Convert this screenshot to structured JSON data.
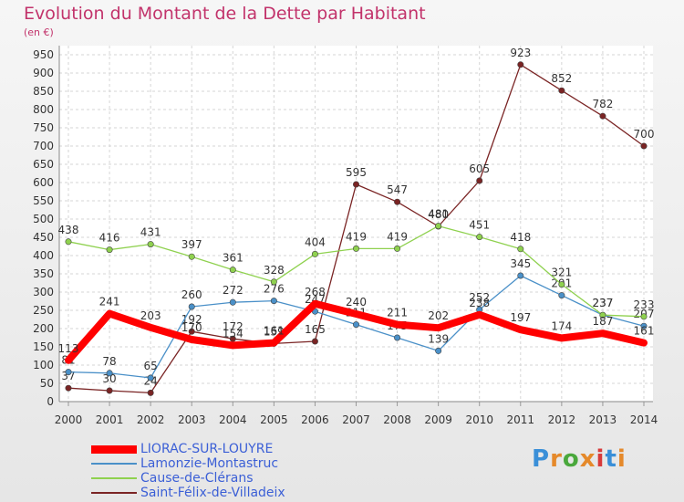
{
  "title": "Evolution du Montant de la Dette par Habitant",
  "unit": "(en €)",
  "brand": "Proxiti",
  "chart_data": {
    "type": "line",
    "x": [
      "2000",
      "2001",
      "2002",
      "2003",
      "2004",
      "2005",
      "2006",
      "2007",
      "2008",
      "2009",
      "2010",
      "2011",
      "2012",
      "2013",
      "2014"
    ],
    "yticks": [
      0,
      50,
      100,
      150,
      200,
      250,
      300,
      350,
      400,
      450,
      500,
      550,
      600,
      650,
      700,
      750,
      800,
      850,
      900,
      950
    ],
    "ylim": [
      0,
      950
    ],
    "grid": true,
    "legend_position": "bottom-left",
    "series": [
      {
        "name": "LIORAC-SUR-LOUYRE",
        "color": "#ff0000",
        "values": [
          113,
          241,
          203,
          170,
          154,
          161,
          268,
          240,
          211,
          202,
          238,
          197,
          174,
          187,
          161
        ]
      },
      {
        "name": "Lamonzie-Montastruc",
        "color": "#4a90c8",
        "values": [
          81,
          78,
          65,
          260,
          272,
          276,
          247,
          211,
          175,
          139,
          252,
          345,
          291,
          237,
          207
        ]
      },
      {
        "name": "Cause-de-Clérans",
        "color": "#8fd14f",
        "values": [
          438,
          416,
          431,
          397,
          361,
          328,
          404,
          419,
          419,
          481,
          451,
          418,
          321,
          237,
          233
        ]
      },
      {
        "name": "Saint-Félix-de-Villadeix",
        "color": "#7a2424",
        "values": [
          37,
          30,
          24,
          192,
          172,
          159,
          165,
          595,
          547,
          480,
          605,
          923,
          852,
          782,
          700
        ]
      }
    ]
  }
}
